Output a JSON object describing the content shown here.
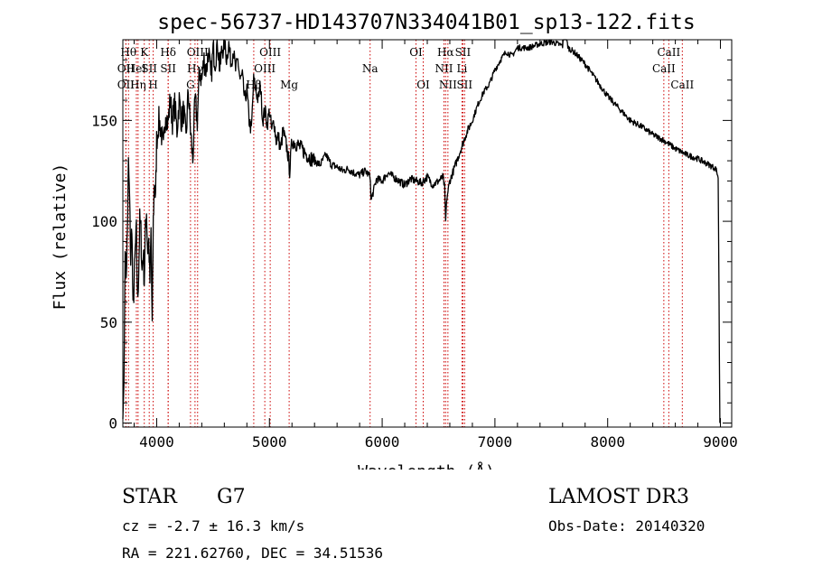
{
  "chart_data": {
    "type": "line",
    "title": "spec-56737-HD143707N334041B01_sp13-122.fits",
    "xlabel": "Wavelength (Å)",
    "ylabel": "Flux (relative)",
    "xlim": [
      3700,
      9100
    ],
    "ylim": [
      -2,
      190
    ],
    "xticks": [
      4000,
      5000,
      6000,
      7000,
      8000,
      9000
    ],
    "yticks": [
      0,
      50,
      100,
      150
    ],
    "grid": false,
    "line_color": "#000000",
    "marker_color": "#cc0000",
    "series": [
      {
        "x": [
          3700,
          3710,
          3720,
          3730,
          3740,
          3750,
          3760,
          3770,
          3780,
          3790,
          3800,
          3810,
          3820,
          3830,
          3840,
          3850,
          3860,
          3870,
          3880,
          3890,
          3900,
          3910,
          3920,
          3930,
          3940,
          3950,
          3960,
          3970,
          3980,
          3990,
          4000,
          4020,
          4040,
          4060,
          4080,
          4100,
          4120,
          4140,
          4160,
          4180,
          4200,
          4220,
          4240,
          4260,
          4280,
          4300,
          4320,
          4340,
          4360,
          4380,
          4400,
          4420,
          4440,
          4460,
          4480,
          4500,
          4520,
          4540,
          4560,
          4580,
          4600,
          4620,
          4640,
          4660,
          4680,
          4700,
          4720,
          4740,
          4760,
          4780,
          4800,
          4820,
          4840,
          4860,
          4880,
          4900,
          4920,
          4940,
          4960,
          4980,
          5000,
          5020,
          5040,
          5060,
          5080,
          5100,
          5120,
          5140,
          5160,
          5180,
          5200,
          5250,
          5300,
          5350,
          5400,
          5450,
          5500,
          5550,
          5600,
          5650,
          5700,
          5750,
          5800,
          5850,
          5895,
          5900,
          5950,
          6000,
          6050,
          6100,
          6150,
          6200,
          6250,
          6300,
          6350,
          6400,
          6450,
          6500,
          6540,
          6555,
          6563,
          6575,
          6600,
          6650,
          6700,
          6750,
          6800,
          6850,
          6900,
          6950,
          7000,
          7050,
          7100,
          7150,
          7200,
          7300,
          7400,
          7500,
          7600,
          7620,
          7650,
          7700,
          7800,
          7900,
          8000,
          8100,
          8200,
          8300,
          8400,
          8500,
          8600,
          8700,
          8800,
          8900,
          8960,
          8980,
          8995
        ],
        "values": [
          2,
          20,
          85,
          75,
          95,
          128,
          110,
          80,
          100,
          55,
          70,
          85,
          95,
          60,
          75,
          100,
          95,
          75,
          85,
          70,
          95,
          105,
          85,
          90,
          70,
          95,
          48,
          100,
          120,
          110,
          140,
          150,
          145,
          135,
          155,
          148,
          160,
          150,
          158,
          145,
          160,
          150,
          155,
          140,
          165,
          145,
          130,
          160,
          150,
          175,
          170,
          180,
          175,
          185,
          170,
          185,
          180,
          190,
          175,
          185,
          190,
          180,
          188,
          178,
          185,
          175,
          180,
          170,
          172,
          160,
          165,
          150,
          145,
          170,
          165,
          160,
          168,
          150,
          155,
          148,
          155,
          145,
          150,
          140,
          142,
          135,
          145,
          140,
          135,
          125,
          140,
          138,
          135,
          132,
          130,
          128,
          133,
          128,
          127,
          125,
          126,
          124,
          123,
          125,
          122,
          110,
          121,
          120,
          124,
          122,
          120,
          118,
          121,
          120,
          119,
          122,
          118,
          120,
          122,
          116,
          100,
          112,
          120,
          128,
          136,
          144,
          150,
          158,
          164,
          168,
          175,
          180,
          184,
          182,
          186,
          186,
          188,
          189,
          187,
          194,
          186,
          184,
          178,
          170,
          162,
          156,
          150,
          147,
          143,
          140,
          136,
          133,
          131,
          128,
          126,
          122,
          0
        ]
      }
    ],
    "line_markers": [
      {
        "x": 3750,
        "label": "Hθ",
        "row": 0
      },
      {
        "x": 3727,
        "label": "OII",
        "row": 1
      },
      {
        "x": 3727,
        "label": "OII",
        "row": 2
      },
      {
        "x": 3820,
        "label": "HeI",
        "row": 1
      },
      {
        "x": 3835,
        "label": "Hη",
        "row": 2
      },
      {
        "x": 3890,
        "label": "K",
        "row": 0
      },
      {
        "x": 3934,
        "label": "SII",
        "row": 1
      },
      {
        "x": 3969,
        "label": "H",
        "row": 2
      },
      {
        "x": 4102,
        "label": "Hδ",
        "row": 0
      },
      {
        "x": 4102,
        "label": "SII",
        "row": 1
      },
      {
        "x": 4300,
        "label": "G",
        "row": 2
      },
      {
        "x": 4340,
        "label": "Hγ",
        "row": 1
      },
      {
        "x": 4363,
        "label": "OIII",
        "row": 0
      },
      {
        "x": 4861,
        "label": "Hβ",
        "row": 2
      },
      {
        "x": 4959,
        "label": "OIII",
        "row": 1
      },
      {
        "x": 5007,
        "label": "OIII",
        "row": 0
      },
      {
        "x": 5175,
        "label": "Mg",
        "row": 2
      },
      {
        "x": 5893,
        "label": "Na",
        "row": 1
      },
      {
        "x": 6300,
        "label": "OI",
        "row": 0
      },
      {
        "x": 6364,
        "label": "OI",
        "row": 2
      },
      {
        "x": 6548,
        "label": "NII",
        "row": 1
      },
      {
        "x": 6563,
        "label": "Hα",
        "row": 0
      },
      {
        "x": 6583,
        "label": "NII",
        "row": 2
      },
      {
        "x": 6708,
        "label": "Li",
        "row": 1
      },
      {
        "x": 6716,
        "label": "SII",
        "row": 0
      },
      {
        "x": 6731,
        "label": "SII",
        "row": 2
      },
      {
        "x": 8498,
        "label": "CaII",
        "row": 1
      },
      {
        "x": 8542,
        "label": "CaII",
        "row": 0
      },
      {
        "x": 8662,
        "label": "CaII",
        "row": 2
      }
    ]
  },
  "info": {
    "object_type": "STAR",
    "subclass": "G7",
    "survey": "LAMOST DR3",
    "redshift": "cz = -2.7 ± 16.3 km/s",
    "obs_date": "Obs-Date: 20140320",
    "coords": "RA = 221.62760, DEC =  34.51536"
  }
}
